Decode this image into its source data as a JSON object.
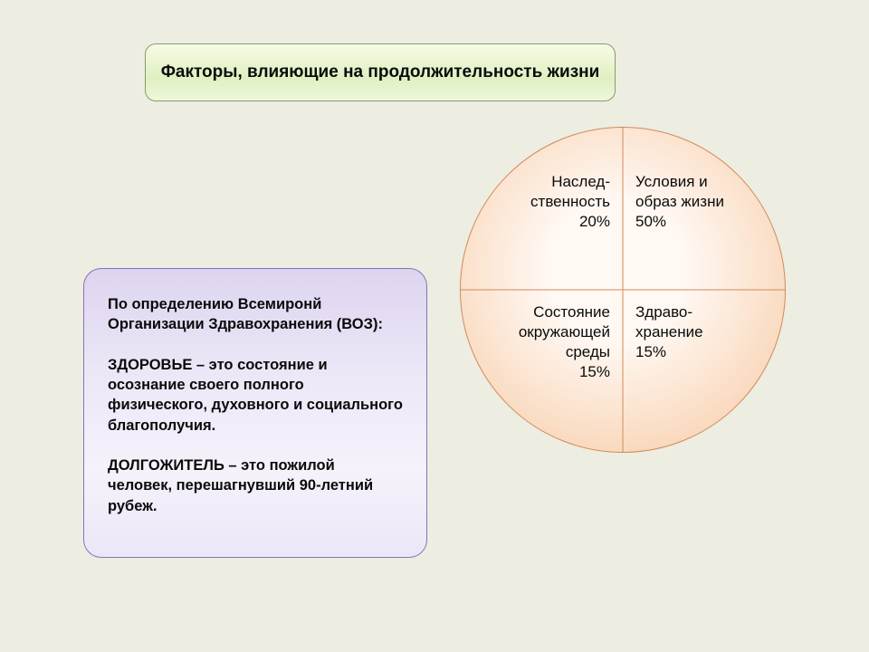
{
  "title": "Факторы, влияющие на продолжительность\nжизни",
  "info_text": "По определению Всемиронй Организации Здравохранения (ВОЗ):\n\nЗДОРОВЬЕ – это состояние и осознание своего полного физического, духовного и социального благополучия.\n\nДОЛГОЖИТЕЛЬ – это пожилой человек, перешагнувший 90-летний рубеж.",
  "pie": {
    "type": "pie-quadrant",
    "diameter": 360,
    "border_color": "#d08a5a",
    "gradient_center": "#fff8f3",
    "gradient_edge": "#f6c79e",
    "gradient_cx": "48%",
    "gradient_cy": "44%",
    "label_fontsize": 17,
    "quadrants": {
      "tl": {
        "label": "Наслед-",
        "label2": "ственность",
        "percent": "20%"
      },
      "tr": {
        "label": "Условия и",
        "label2": "образ жизни",
        "percent": "50%"
      },
      "bl": {
        "label": "Состояние",
        "label2": "окружающей",
        "label3": "среды",
        "percent": "15%"
      },
      "br": {
        "label": "Здраво-",
        "label2": "хранение",
        "percent": "15%"
      }
    }
  },
  "colors": {
    "page_bg": "#edede1",
    "title_border": "#8a9b6d",
    "title_grad_top": "#f7fbe6",
    "title_grad_bottom": "#dff0c2",
    "info_border": "#8574b7",
    "info_grad_top": "#ded4f0",
    "info_grad_bottom": "#f5f2fb"
  }
}
